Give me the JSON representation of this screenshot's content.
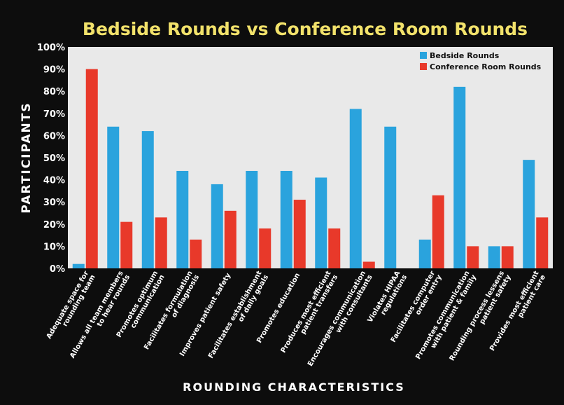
{
  "chart_data": {
    "type": "bar",
    "title": "Bedside Rounds vs Conference Room Rounds",
    "ylabel": "PARTICIPANTS",
    "xlabel": "ROUNDING CHARACTERISTICS",
    "ylim": [
      0,
      100
    ],
    "yticks": [
      "0%",
      "10%",
      "20%",
      "30%",
      "40%",
      "50%",
      "60%",
      "70%",
      "80%",
      "90%",
      "100%"
    ],
    "legend_position": "top-right",
    "grid": false,
    "categories": [
      [
        "Adequate space for",
        "rounding team"
      ],
      [
        "Allows all team members",
        "to hear rounds"
      ],
      [
        "Promotes optimum",
        "communication"
      ],
      [
        "Facilitates formulation",
        "of diagnosis"
      ],
      [
        "Improves patient safety"
      ],
      [
        "Facilitates establishment",
        "of daily goals"
      ],
      [
        "Promotes education"
      ],
      [
        "Produces most efficient",
        "patient transfers"
      ],
      [
        "Encourages communication",
        "with consultants"
      ],
      [
        "Violates HIPAA",
        "regulations"
      ],
      [
        "Facilitates computer",
        "order entry"
      ],
      [
        "Promotes communication",
        "with patient & family"
      ],
      [
        "Rounding process lessens",
        "patient safety"
      ],
      [
        "Provides most efficient",
        "patient care"
      ]
    ],
    "series": [
      {
        "name": "Bedside Rounds",
        "color": "#2aa3dd",
        "values": [
          2,
          64,
          62,
          44,
          38,
          44,
          44,
          41,
          72,
          64,
          13,
          82,
          10,
          49
        ]
      },
      {
        "name": "Conference Room Rounds",
        "color": "#e8392a",
        "values": [
          90,
          21,
          23,
          13,
          26,
          18,
          31,
          18,
          3,
          0,
          33,
          10,
          10,
          23
        ]
      }
    ]
  },
  "colors": {
    "background": "#0d0d0d",
    "plot_area": "#e9e9e9",
    "title": "#f2e26b",
    "axis_text": "#ffffff"
  }
}
